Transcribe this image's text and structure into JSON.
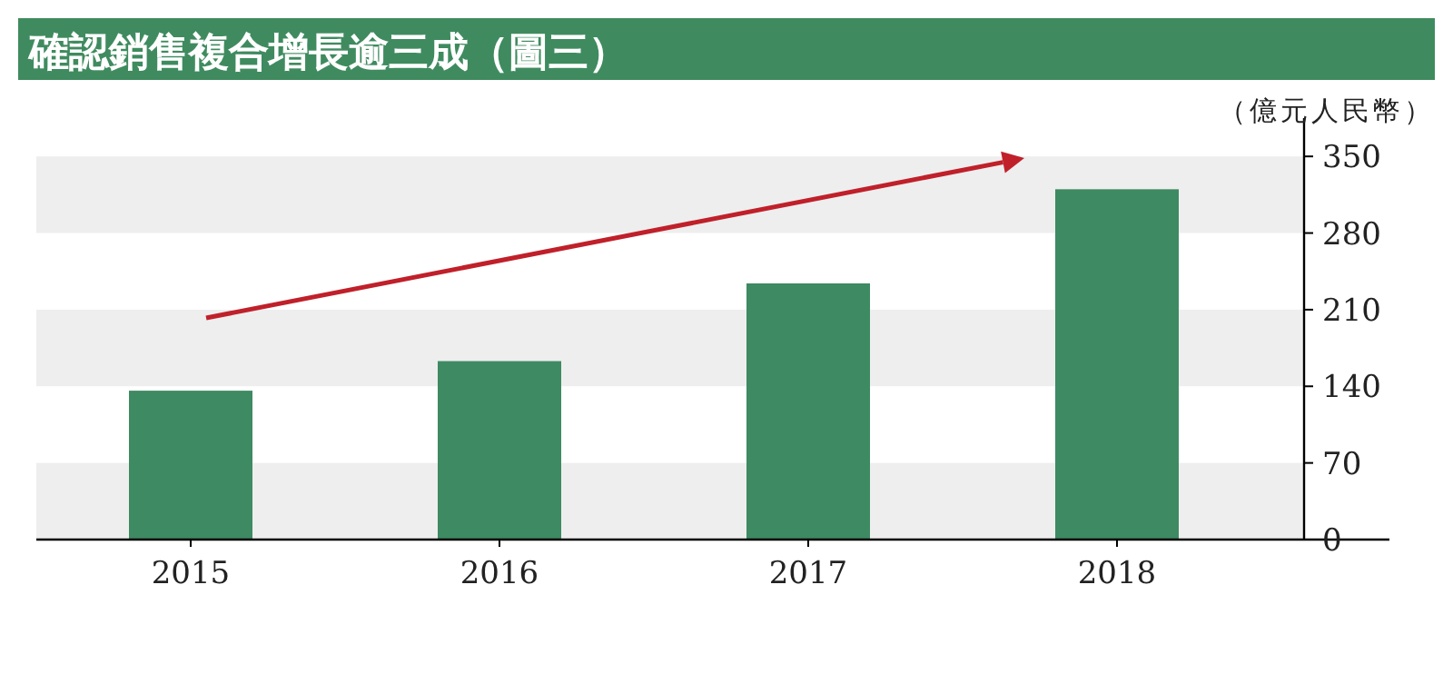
{
  "chart_data": {
    "type": "bar",
    "title": "確認銷售複合增長逾三成（圖三）",
    "ylabel": "（億元人民幣）",
    "categories": [
      "2015",
      "2016",
      "2017",
      "2018"
    ],
    "values": [
      136,
      163,
      234,
      320
    ],
    "color": "#3e8a62",
    "ylim": [
      0,
      385
    ],
    "yticks": [
      0,
      70,
      140,
      210,
      280,
      350
    ],
    "grid": false,
    "bands": [
      {
        "axis": "y",
        "from": 0,
        "to": 70,
        "color": "#eeeeee"
      },
      {
        "axis": "y",
        "from": 140,
        "to": 210,
        "color": "#eeeeee"
      },
      {
        "axis": "y",
        "from": 280,
        "to": 350,
        "color": "#eeeeee"
      }
    ]
  }
}
